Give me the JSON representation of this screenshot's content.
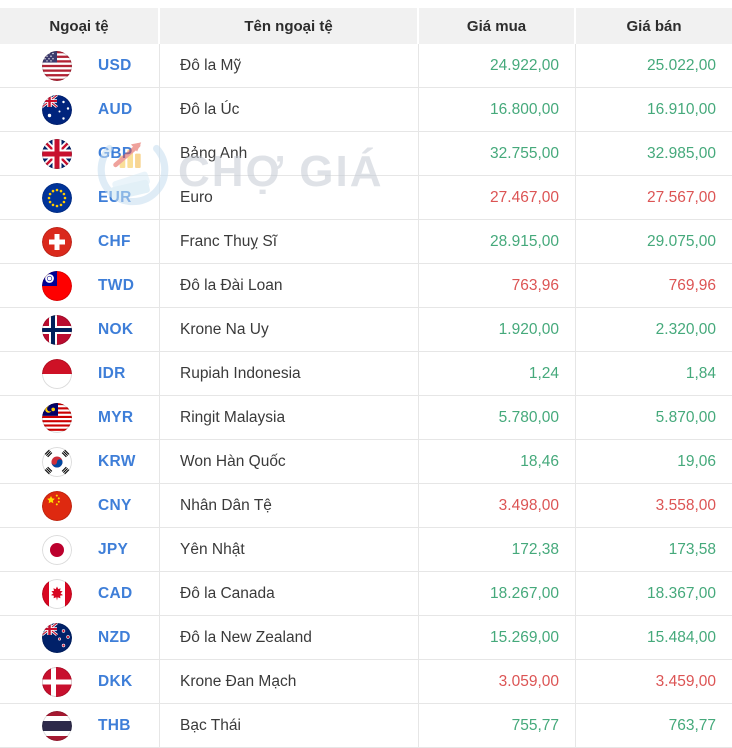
{
  "header": {
    "columns": [
      "Ngoại tệ",
      "Tên ngoại tệ",
      "Giá mua",
      "Giá bán"
    ]
  },
  "watermark": {
    "text": "CHỢ GIÁ",
    "logo_icon": "chogia-logo-icon"
  },
  "colors": {
    "price_up": "#45a97b",
    "price_down": "#dc5454",
    "currency_code": "#3e7ed8",
    "header_bg": "#f1f1f1",
    "border": "#e6e6e6"
  },
  "rows": [
    {
      "code": "USD",
      "flag_icon": "flag-usd-icon",
      "name": "Đô la Mỹ",
      "buy": "24.922,00",
      "sell": "25.022,00",
      "trend": "up"
    },
    {
      "code": "AUD",
      "flag_icon": "flag-aud-icon",
      "name": "Đô la Úc",
      "buy": "16.800,00",
      "sell": "16.910,00",
      "trend": "up"
    },
    {
      "code": "GBP",
      "flag_icon": "flag-gbp-icon",
      "name": "Bảng Anh",
      "buy": "32.755,00",
      "sell": "32.985,00",
      "trend": "up"
    },
    {
      "code": "EUR",
      "flag_icon": "flag-eur-icon",
      "name": "Euro",
      "buy": "27.467,00",
      "sell": "27.567,00",
      "trend": "down"
    },
    {
      "code": "CHF",
      "flag_icon": "flag-chf-icon",
      "name": "Franc Thuỵ Sĩ",
      "buy": "28.915,00",
      "sell": "29.075,00",
      "trend": "up"
    },
    {
      "code": "TWD",
      "flag_icon": "flag-twd-icon",
      "name": "Đô la Đài Loan",
      "buy": "763,96",
      "sell": "769,96",
      "trend": "down"
    },
    {
      "code": "NOK",
      "flag_icon": "flag-nok-icon",
      "name": "Krone Na Uy",
      "buy": "1.920,00",
      "sell": "2.320,00",
      "trend": "up"
    },
    {
      "code": "IDR",
      "flag_icon": "flag-idr-icon",
      "name": "Rupiah Indonesia",
      "buy": "1,24",
      "sell": "1,84",
      "trend": "up"
    },
    {
      "code": "MYR",
      "flag_icon": "flag-myr-icon",
      "name": "Ringit Malaysia",
      "buy": "5.780,00",
      "sell": "5.870,00",
      "trend": "up"
    },
    {
      "code": "KRW",
      "flag_icon": "flag-krw-icon",
      "name": "Won Hàn Quốc",
      "buy": "18,46",
      "sell": "19,06",
      "trend": "up"
    },
    {
      "code": "CNY",
      "flag_icon": "flag-cny-icon",
      "name": "Nhân Dân Tệ",
      "buy": "3.498,00",
      "sell": "3.558,00",
      "trend": "down"
    },
    {
      "code": "JPY",
      "flag_icon": "flag-jpy-icon",
      "name": "Yên Nhật",
      "buy": "172,38",
      "sell": "173,58",
      "trend": "up"
    },
    {
      "code": "CAD",
      "flag_icon": "flag-cad-icon",
      "name": "Đô la Canada",
      "buy": "18.267,00",
      "sell": "18.367,00",
      "trend": "up"
    },
    {
      "code": "NZD",
      "flag_icon": "flag-nzd-icon",
      "name": "Đô la New Zealand",
      "buy": "15.269,00",
      "sell": "15.484,00",
      "trend": "up"
    },
    {
      "code": "DKK",
      "flag_icon": "flag-dkk-icon",
      "name": "Krone Đan Mạch",
      "buy": "3.059,00",
      "sell": "3.459,00",
      "trend": "down"
    },
    {
      "code": "THB",
      "flag_icon": "flag-thb-icon",
      "name": "Bạc Thái",
      "buy": "755,77",
      "sell": "763,77",
      "trend": "up"
    }
  ]
}
